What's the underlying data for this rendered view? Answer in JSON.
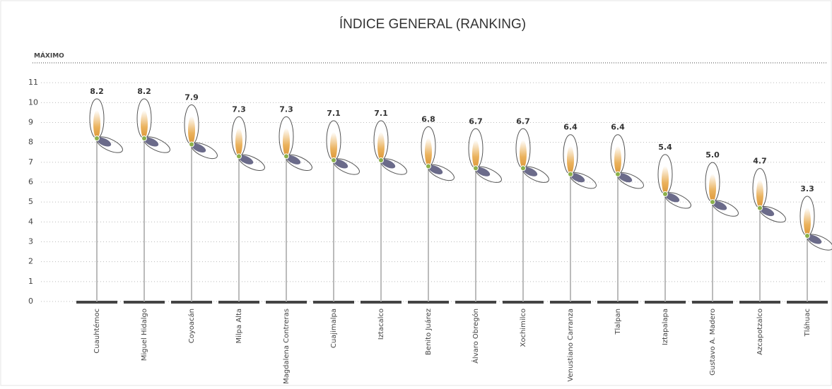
{
  "chart_data": {
    "type": "lollipop",
    "title": "ÍNDICE GENERAL (RANKING)",
    "categories": [
      "Cuauhtémoc",
      "Miguel Hidalgo",
      "Coyoacán",
      "Milpa Alta",
      "Magdalena Contreras",
      "Cuajimalpa",
      "Iztacalco",
      "Benito Juárez",
      "Álvaro Obregón",
      "Xochimilco",
      "Venustiano Carranza",
      "Tlalpan",
      "Iztapalapa",
      "Gustavo A. Madero",
      "Azcapotzalco",
      "Tláhuac"
    ],
    "values": [
      8.2,
      8.2,
      7.9,
      7.3,
      7.3,
      7.1,
      7.1,
      6.8,
      6.7,
      6.7,
      6.4,
      6.4,
      5.4,
      5.0,
      4.7,
      3.3
    ],
    "value_labels": [
      "8.2",
      "8.2",
      "7.9",
      "7.3",
      "7.3",
      "7.1",
      "7.1",
      "6.8",
      "6.7",
      "6.7",
      "6.4",
      "6.4",
      "5.4",
      "5.0",
      "4.7",
      "3.3"
    ],
    "color": "#e8a94a",
    "ylim": [
      0,
      12
    ],
    "yticks": [
      0,
      1,
      2,
      3,
      4,
      5,
      6,
      7,
      8,
      9,
      10,
      11
    ],
    "grid": true,
    "max_line": {
      "label": "MÁXIMO",
      "value": 12
    }
  }
}
